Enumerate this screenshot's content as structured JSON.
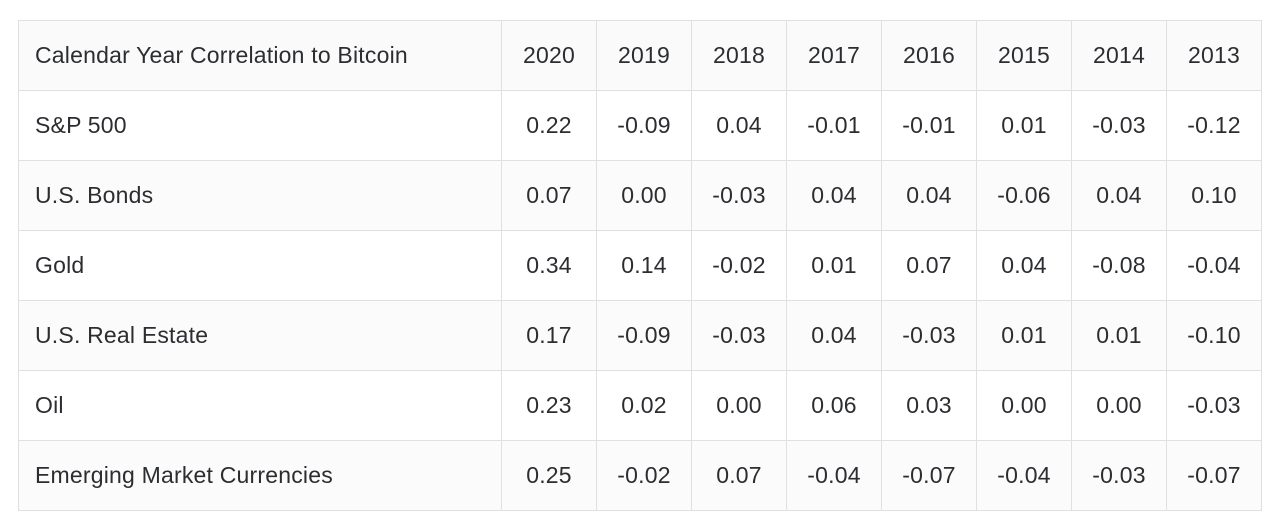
{
  "table": {
    "header": {
      "label": "Calendar Year Correlation to Bitcoin",
      "years": [
        "2020",
        "2019",
        "2018",
        "2017",
        "2016",
        "2015",
        "2014",
        "2013"
      ]
    },
    "rows": [
      {
        "label": "S&P 500",
        "values": [
          "0.22",
          "-0.09",
          "0.04",
          "-0.01",
          "-0.01",
          "0.01",
          "-0.03",
          "-0.12"
        ]
      },
      {
        "label": "U.S. Bonds",
        "values": [
          "0.07",
          "0.00",
          "-0.03",
          "0.04",
          "0.04",
          "-0.06",
          "0.04",
          "0.10"
        ]
      },
      {
        "label": "Gold",
        "values": [
          "0.34",
          "0.14",
          "-0.02",
          "0.01",
          "0.07",
          "0.04",
          "-0.08",
          "-0.04"
        ]
      },
      {
        "label": "U.S. Real Estate",
        "values": [
          "0.17",
          "-0.09",
          "-0.03",
          "0.04",
          "-0.03",
          "0.01",
          "0.01",
          "-0.10"
        ]
      },
      {
        "label": "Oil",
        "values": [
          "0.23",
          "0.02",
          "0.00",
          "0.06",
          "0.03",
          "0.00",
          "0.00",
          "-0.03"
        ]
      },
      {
        "label": "Emerging Market Currencies",
        "values": [
          "0.25",
          "-0.02",
          "0.07",
          "-0.04",
          "-0.07",
          "-0.04",
          "-0.03",
          "-0.07"
        ]
      }
    ]
  },
  "colors": {
    "page_bg": "#ffffff",
    "header_bg": "#fafafa",
    "row_bg": "#ffffff",
    "row_alt_bg": "#fbfbfb",
    "border_color": "#e0e0e0",
    "text_color": "#2b2d30"
  },
  "chart_data": {
    "type": "table",
    "title": "Calendar Year Correlation to Bitcoin",
    "columns": [
      "2020",
      "2019",
      "2018",
      "2017",
      "2016",
      "2015",
      "2014",
      "2013"
    ],
    "row_labels": [
      "S&P 500",
      "U.S. Bonds",
      "Gold",
      "U.S. Real Estate",
      "Oil",
      "Emerging Market Currencies"
    ],
    "values": [
      [
        0.22,
        -0.09,
        0.04,
        -0.01,
        -0.01,
        0.01,
        -0.03,
        -0.12
      ],
      [
        0.07,
        0.0,
        -0.03,
        0.04,
        0.04,
        -0.06,
        0.04,
        0.1
      ],
      [
        0.34,
        0.14,
        -0.02,
        0.01,
        0.07,
        0.04,
        -0.08,
        -0.04
      ],
      [
        0.17,
        -0.09,
        -0.03,
        0.04,
        -0.03,
        0.01,
        0.01,
        -0.1
      ],
      [
        0.23,
        0.02,
        0.0,
        0.06,
        0.03,
        0.0,
        0.0,
        -0.03
      ],
      [
        0.25,
        -0.02,
        0.07,
        -0.04,
        -0.07,
        -0.04,
        -0.03,
        -0.07
      ]
    ],
    "value_range": [
      -0.12,
      0.34
    ],
    "grid": true,
    "legend": "none"
  }
}
